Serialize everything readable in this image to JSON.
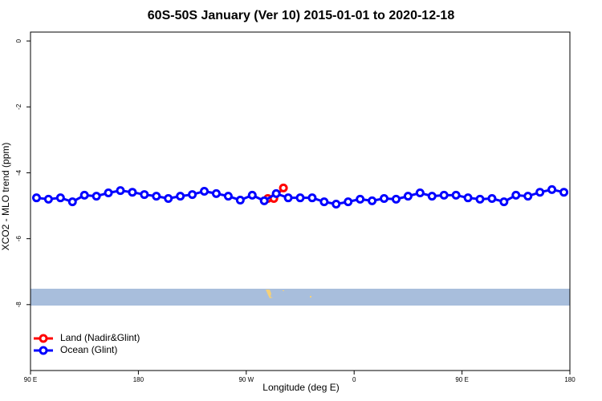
{
  "chart_data": {
    "type": "line",
    "title": "60S-50S January (Ver 10)   2015-01-01 to 2020-12-18",
    "x_label": "Longitude (deg E)",
    "y_label": "XCO2 - MLO trend (ppm)",
    "xlim": [
      90,
      540
    ],
    "ylim": [
      -10,
      0.27
    ],
    "xticks": [
      {
        "value": 90,
        "label": "90 E"
      },
      180,
      {
        "value": 270,
        "label": "90 W"
      },
      {
        "value": 360,
        "label": "0"
      },
      {
        "value": 450,
        "label": "90 E"
      },
      {
        "value": 540,
        "label": "180"
      }
    ],
    "yticks": [
      0,
      -2,
      -4,
      -6,
      -8
    ],
    "legend_position": "bottom-left",
    "series": [
      {
        "name": "Land (Nadir&Glint)",
        "color": "#ff0000",
        "x": [
          288,
          293,
          301
        ],
        "values": [
          -4.78,
          -4.78,
          -4.46
        ]
      },
      {
        "name": "Ocean (Glint)",
        "color": "#0000ff",
        "x": [
          95,
          105,
          115,
          125,
          135,
          145,
          155,
          165,
          175,
          185,
          195,
          205,
          215,
          225,
          235,
          245,
          255,
          265,
          275,
          285,
          295,
          305,
          315,
          325,
          335,
          345,
          355,
          365,
          375,
          385,
          395,
          405,
          415,
          425,
          435,
          445,
          455,
          465,
          475,
          485,
          495,
          505,
          515,
          525,
          535
        ],
        "values": [
          -4.76,
          -4.8,
          -4.76,
          -4.88,
          -4.68,
          -4.71,
          -4.61,
          -4.54,
          -4.59,
          -4.66,
          -4.71,
          -4.78,
          -4.71,
          -4.66,
          -4.56,
          -4.63,
          -4.71,
          -4.83,
          -4.68,
          -4.85,
          -4.63,
          -4.76,
          -4.76,
          -4.76,
          -4.88,
          -4.95,
          -4.88,
          -4.8,
          -4.85,
          -4.78,
          -4.8,
          -4.71,
          -4.61,
          -4.71,
          -4.68,
          -4.68,
          -4.76,
          -4.8,
          -4.78,
          -4.88,
          -4.68,
          -4.71,
          -4.59,
          -4.51,
          -4.59
        ]
      }
    ]
  }
}
